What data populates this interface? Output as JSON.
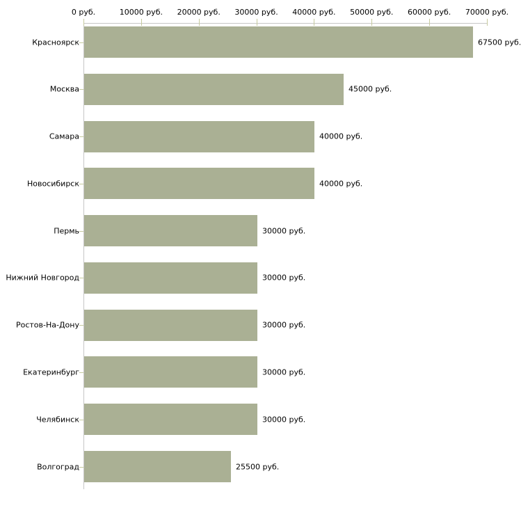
{
  "chart_data": {
    "type": "bar",
    "orientation": "horizontal",
    "title": "",
    "categories": [
      "Красноярск",
      "Москва",
      "Самара",
      "Новосибирск",
      "Пермь",
      "Нижний Новгород",
      "Ростов-На-Дону",
      "Екатеринбург",
      "Челябинск",
      "Волгоград"
    ],
    "values": [
      67500,
      45000,
      40000,
      40000,
      30000,
      30000,
      30000,
      30000,
      30000,
      25500
    ],
    "value_labels": [
      "67500 руб.",
      "45000 руб.",
      "40000 руб.",
      "40000 руб.",
      "30000 руб.",
      "30000 руб.",
      "30000 руб.",
      "30000 руб.",
      "30000 руб.",
      "25500 руб."
    ],
    "x_axis": {
      "position": "top",
      "range": [
        0,
        70000
      ],
      "tick_values": [
        0,
        10000,
        20000,
        30000,
        40000,
        50000,
        60000,
        70000
      ],
      "tick_labels": [
        "0 руб.",
        "10000 руб.",
        "20000 руб.",
        "30000 руб.",
        "40000 руб.",
        "50000 руб.",
        "60000 руб.",
        "70000 руб."
      ]
    },
    "grid": false,
    "legend": false,
    "colors": {
      "bar": "#aab094",
      "tick": "#c6ca9e",
      "axis": "#c6c6c6",
      "text": "#000000",
      "background": "#ffffff"
    }
  }
}
